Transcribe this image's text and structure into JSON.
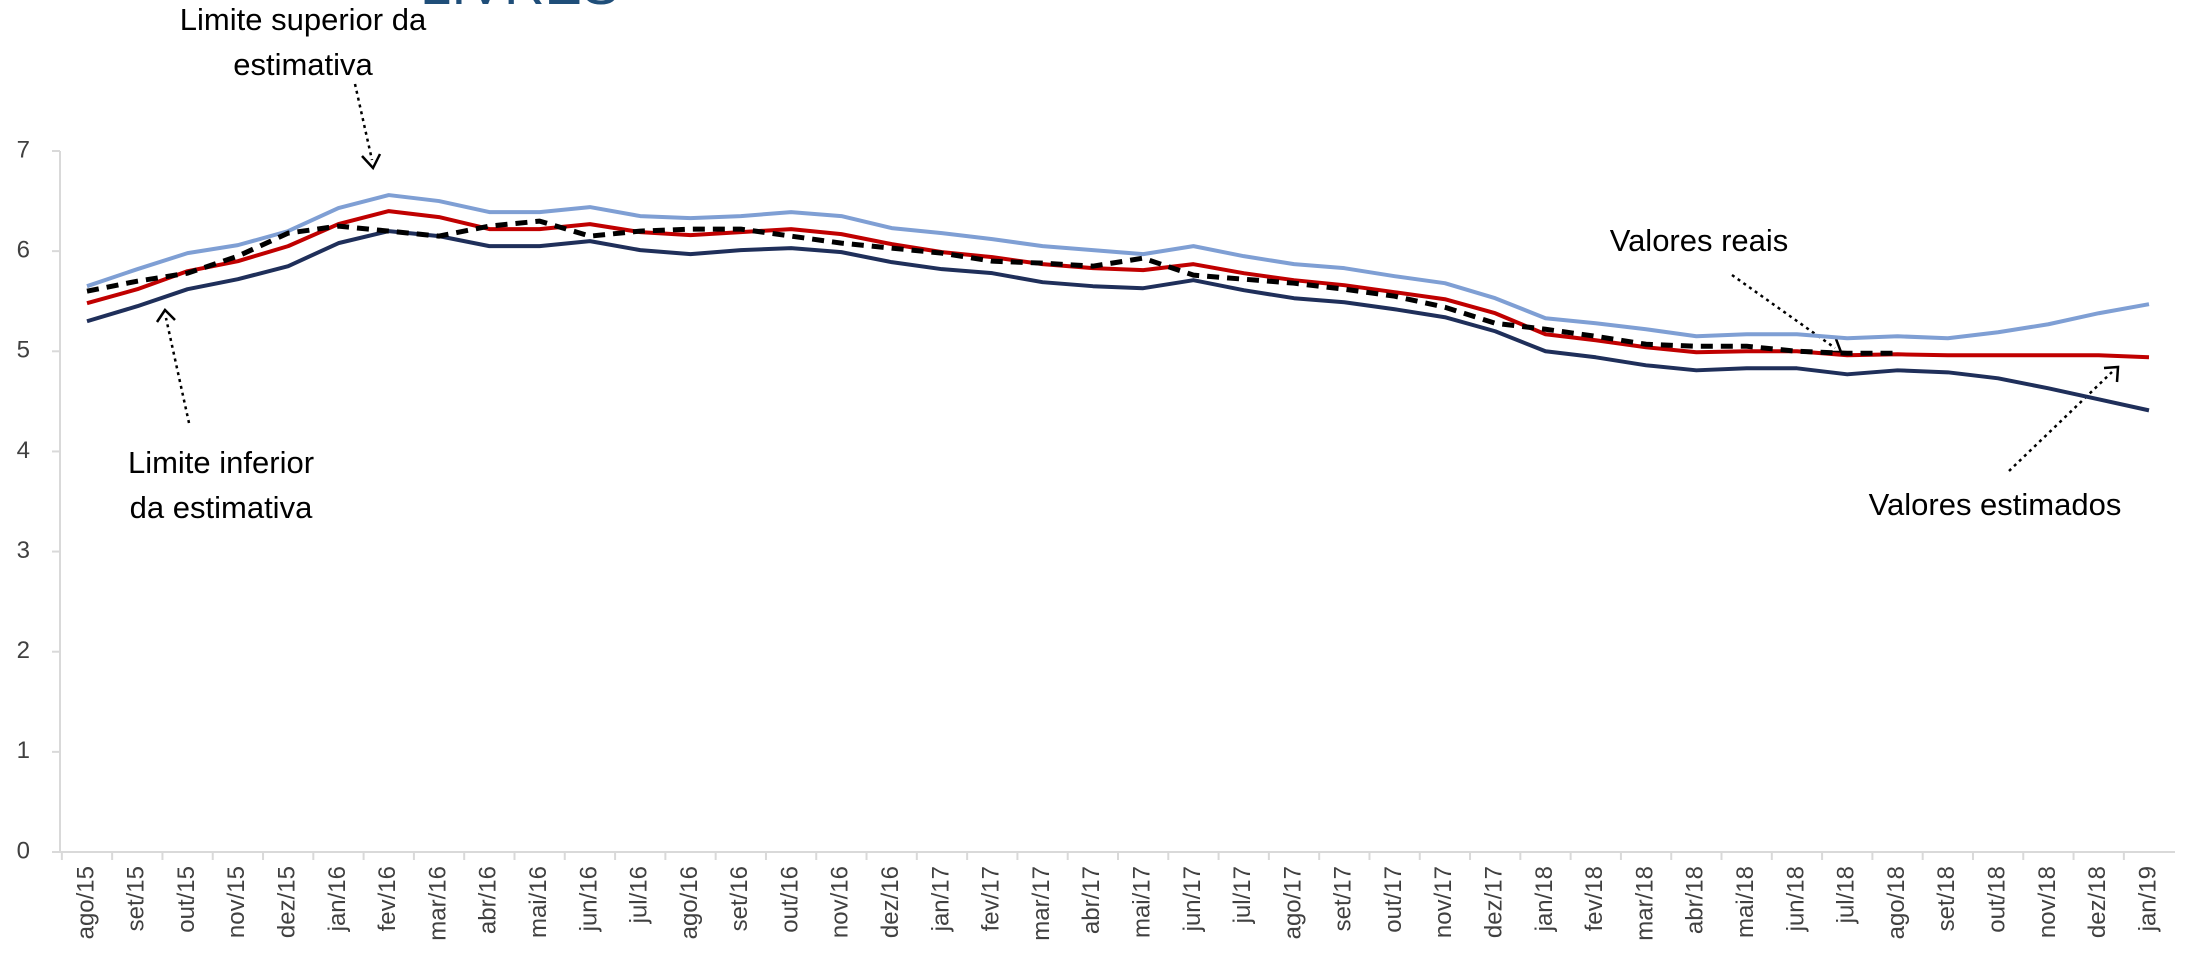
{
  "chart_data": {
    "type": "line",
    "title": "LIVRES",
    "categories": [
      "ago/15",
      "set/15",
      "out/15",
      "nov/15",
      "dez/15",
      "jan/16",
      "fev/16",
      "mar/16",
      "abr/16",
      "mai/16",
      "jun/16",
      "jul/16",
      "ago/16",
      "set/16",
      "out/16",
      "nov/16",
      "dez/16",
      "jan/17",
      "fev/17",
      "mar/17",
      "abr/17",
      "mai/17",
      "jun/17",
      "jul/17",
      "ago/17",
      "set/17",
      "out/17",
      "nov/17",
      "dez/17",
      "jan/18",
      "fev/18",
      "mar/18",
      "abr/18",
      "mai/18",
      "jun/18",
      "jul/18",
      "ago/18",
      "set/18",
      "out/18",
      "nov/18",
      "dez/18",
      "jan/19"
    ],
    "series": [
      {
        "color": "#7f9fd4",
        "values": [
          5.65,
          5.82,
          5.98,
          6.06,
          6.2,
          6.43,
          6.56,
          6.5,
          6.39,
          6.39,
          6.44,
          6.35,
          6.33,
          6.35,
          6.39,
          6.35,
          6.23,
          6.18,
          6.12,
          6.05,
          6.01,
          5.97,
          6.05,
          5.95,
          5.87,
          5.83,
          5.75,
          5.68,
          5.53,
          5.33,
          5.28,
          5.22,
          5.15,
          5.17,
          5.17,
          5.13,
          5.15,
          5.13,
          5.19,
          5.27,
          5.38,
          5.47
        ]
      },
      {
        "color": "#1f2f5a",
        "values": [
          5.3,
          5.45,
          5.62,
          5.72,
          5.85,
          6.08,
          6.2,
          6.15,
          6.05,
          6.05,
          6.1,
          6.01,
          5.97,
          6.01,
          6.03,
          5.99,
          5.89,
          5.82,
          5.78,
          5.69,
          5.65,
          5.63,
          5.71,
          5.61,
          5.53,
          5.49,
          5.42,
          5.34,
          5.2,
          5.0,
          4.94,
          4.86,
          4.81,
          4.83,
          4.83,
          4.77,
          4.81,
          4.79,
          4.73,
          4.63,
          4.52,
          4.41
        ]
      },
      {
        "color": "#c00000",
        "values": [
          5.48,
          5.62,
          5.8,
          5.9,
          6.05,
          6.27,
          6.4,
          6.34,
          6.22,
          6.22,
          6.27,
          6.19,
          6.16,
          6.19,
          6.22,
          6.17,
          6.07,
          5.99,
          5.94,
          5.87,
          5.83,
          5.81,
          5.87,
          5.78,
          5.71,
          5.66,
          5.59,
          5.52,
          5.38,
          5.17,
          5.11,
          5.04,
          4.99,
          5.0,
          5.0,
          4.96,
          4.97,
          4.96,
          4.96,
          4.96,
          4.96,
          4.94
        ]
      },
      {
        "color": "#000000",
        "dashed": true,
        "values": [
          5.6,
          5.7,
          5.78,
          5.95,
          6.18,
          6.25,
          6.2,
          6.15,
          6.25,
          6.3,
          6.15,
          6.2,
          6.22,
          6.22,
          6.15,
          6.08,
          6.03,
          5.98,
          5.9,
          5.88,
          5.85,
          5.93,
          5.76,
          5.72,
          5.68,
          5.62,
          5.55,
          5.44,
          5.28,
          5.22,
          5.15,
          5.07,
          5.05,
          5.05,
          5.0,
          4.98,
          4.98,
          null,
          null,
          null,
          null,
          null
        ]
      }
    ],
    "ylim": [
      0,
      7
    ],
    "yticks": [
      0,
      1,
      2,
      3,
      4,
      5,
      6,
      7
    ],
    "annotations": [
      {
        "lines": [
          "Limite superior da",
          "estimativa"
        ]
      },
      {
        "lines": [
          "Limite inferior",
          "da estimativa"
        ]
      },
      {
        "lines": [
          "Valores reais"
        ]
      },
      {
        "lines": [
          "Valores estimados"
        ]
      }
    ]
  }
}
